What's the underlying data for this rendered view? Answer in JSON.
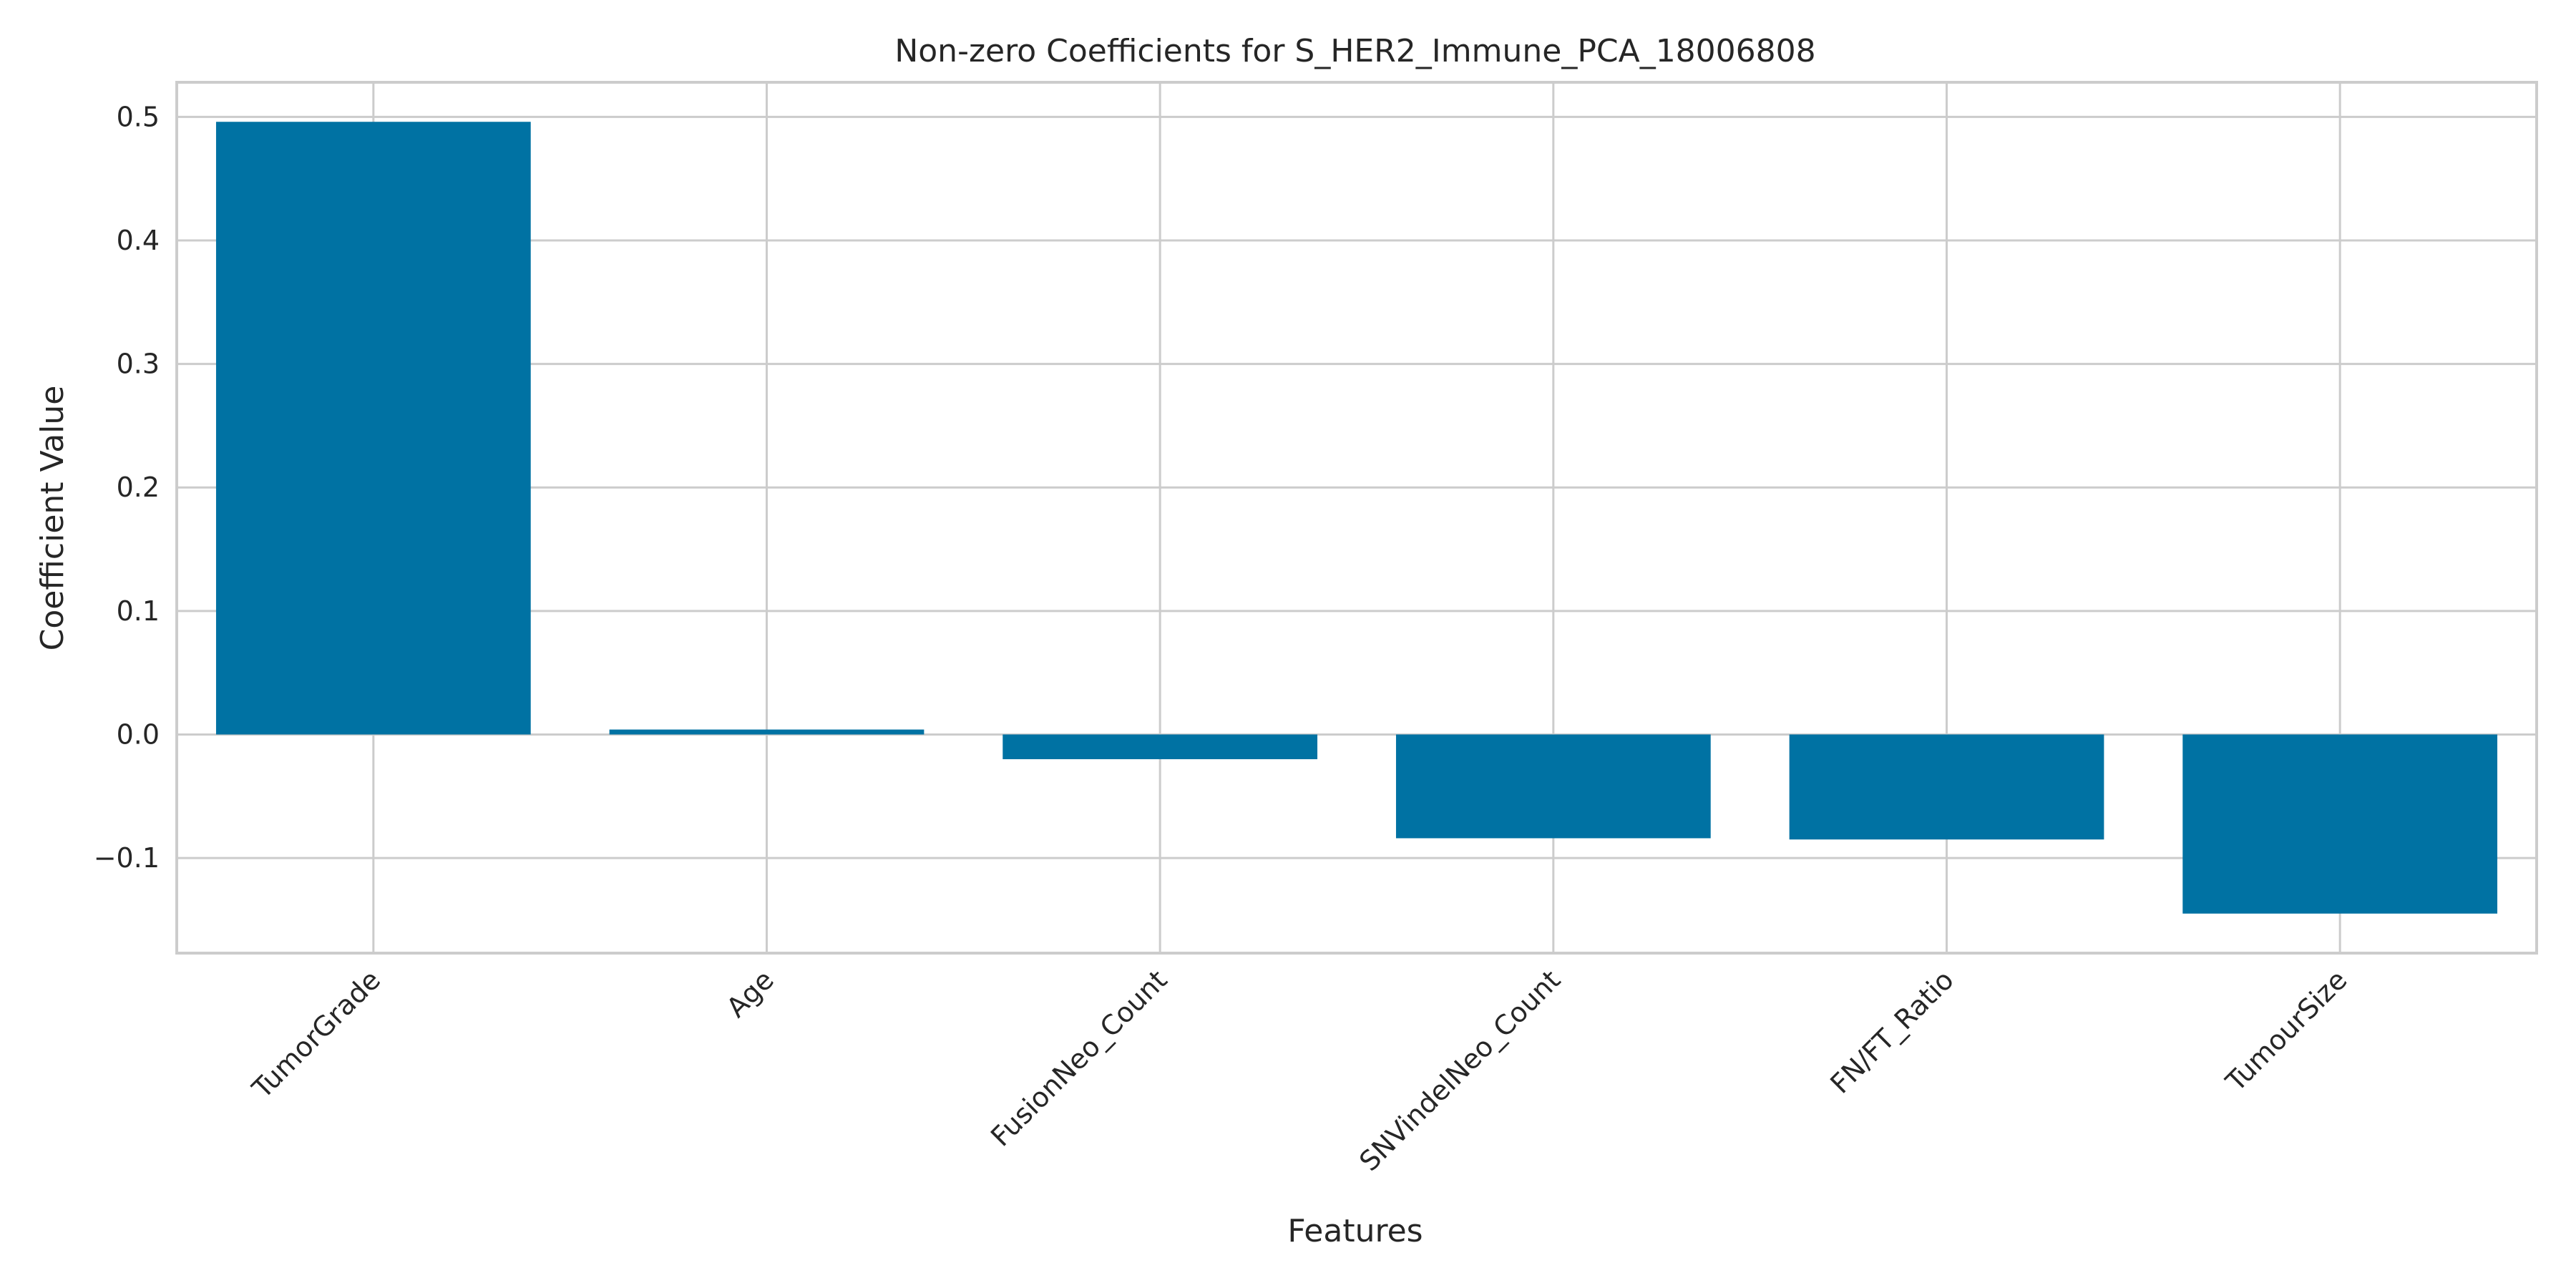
{
  "chart_data": {
    "type": "bar",
    "title": "Non-zero Coefficients for S_HER2_Immune_PCA_18006808",
    "xlabel": "Features",
    "ylabel": "Coefficient Value",
    "categories": [
      "TumorGrade",
      "Age",
      "FusionNeo_Count",
      "SNVindelNeo_Count",
      "FN/FT_Ratio",
      "TumourSize"
    ],
    "values": [
      0.496,
      0.004,
      -0.02,
      -0.084,
      -0.085,
      -0.145
    ],
    "ylim": [
      -0.177,
      0.528
    ],
    "yticks": [
      -0.1,
      0.0,
      0.1,
      0.2,
      0.3,
      0.4,
      0.5
    ],
    "ytick_labels": [
      "−0.1",
      "0.0",
      "0.1",
      "0.2",
      "0.3",
      "0.4",
      "0.5"
    ],
    "grid": true,
    "legend": "none",
    "colors": {
      "bar": "#0072a3",
      "grid": "#cccccc",
      "frame": "#cccccc",
      "text": "#262626"
    }
  }
}
